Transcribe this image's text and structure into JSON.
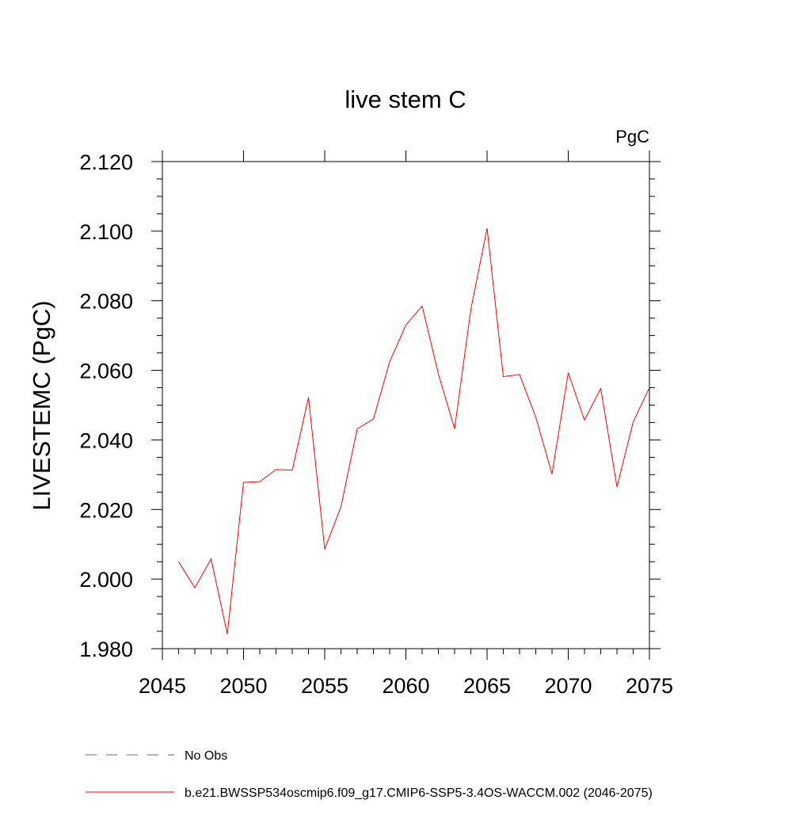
{
  "chart_data": {
    "type": "line",
    "title": "live stem C",
    "units": "PgC",
    "xlabel": "",
    "ylabel": "LIVESTEMC  (PgC)",
    "xlim": [
      2045,
      2075
    ],
    "ylim": [
      1.98,
      2.12
    ],
    "xticks": [
      "2045",
      "2050",
      "2055",
      "2060",
      "2065",
      "2070",
      "2075"
    ],
    "yticks": [
      "1.980",
      "2.000",
      "2.020",
      "2.040",
      "2.060",
      "2.080",
      "2.100",
      "2.120"
    ],
    "series": [
      {
        "name": "b.e21.BWSSP534oscmip6.f09_g17.CMIP6-SSP5-3.4OS-WACCM.002 (2046-2075)",
        "color": "#ff0000",
        "x": [
          2046,
          2047,
          2048,
          2049,
          2050,
          2051,
          2052,
          2053,
          2054,
          2055,
          2056,
          2057,
          2058,
          2059,
          2060,
          2061,
          2062,
          2063,
          2064,
          2065,
          2066,
          2067,
          2068,
          2069,
          2070,
          2071,
          2072,
          2073,
          2074,
          2075
        ],
        "values": [
          2.005,
          1.9975,
          2.0058,
          1.9842,
          2.0278,
          2.028,
          2.0315,
          2.0313,
          2.0522,
          2.0086,
          2.0208,
          2.0432,
          2.046,
          2.0625,
          2.073,
          2.0785,
          2.059,
          2.0432,
          2.0775,
          2.1008,
          2.0582,
          2.0588,
          2.0465,
          2.0302,
          2.0593,
          2.0457,
          2.0548,
          2.0265,
          2.0452,
          2.055
        ]
      }
    ],
    "legend": [
      {
        "label": "No Obs",
        "color": "#6a5acd",
        "style": "dashed"
      },
      {
        "label": "b.e21.BWSSP534oscmip6.f09_g17.CMIP6-SSP5-3.4OS-WACCM.002 (2046-2075)",
        "color": "#ff0000",
        "style": "solid"
      }
    ]
  }
}
